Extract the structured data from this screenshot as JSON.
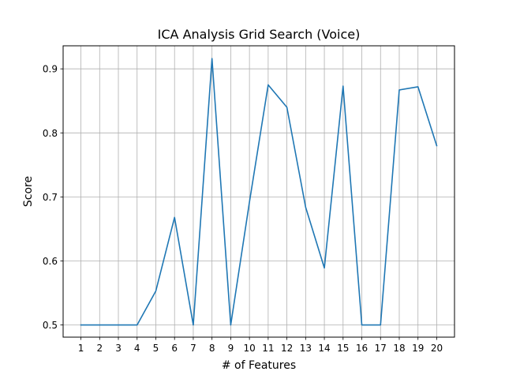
{
  "chart_data": {
    "type": "line",
    "title": "ICA Analysis Grid Search (Voice)",
    "xlabel": "# of Features",
    "ylabel": "Score",
    "xlim": [
      0.05,
      20.95
    ],
    "ylim": [
      0.481,
      0.936
    ],
    "xticks": [
      1,
      2,
      3,
      4,
      5,
      6,
      7,
      8,
      9,
      10,
      11,
      12,
      13,
      14,
      15,
      16,
      17,
      18,
      19,
      20
    ],
    "yticks": [
      0.5,
      0.6,
      0.7,
      0.8,
      0.9
    ],
    "ytick_labels": [
      "0.5",
      "0.6",
      "0.7",
      "0.8",
      "0.9"
    ],
    "grid": true,
    "series": [
      {
        "color": "#1f77b4",
        "x": [
          1,
          2,
          3,
          4,
          5,
          6,
          7,
          8,
          9,
          10,
          11,
          12,
          13,
          14,
          15,
          16,
          17,
          18,
          19,
          20
        ],
        "y": [
          0.5,
          0.5,
          0.5,
          0.5,
          0.553,
          0.668,
          0.5,
          0.916,
          0.5,
          0.692,
          0.875,
          0.84,
          0.684,
          0.589,
          0.873,
          0.5,
          0.5,
          0.867,
          0.872,
          0.78
        ]
      }
    ]
  }
}
